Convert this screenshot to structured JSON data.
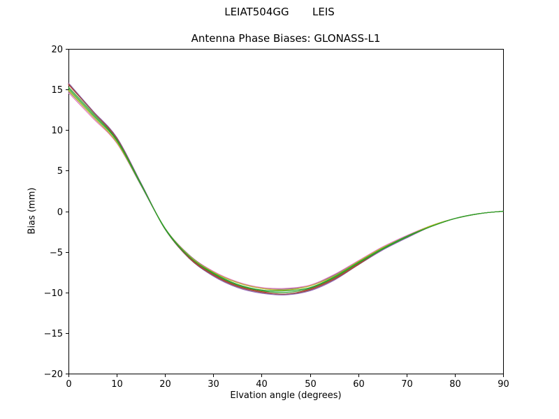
{
  "figure": {
    "suptitle": "LEIAT504GG       LEIS",
    "title": "Antenna Phase Biases: GLONASS-L1",
    "xlabel": "Elvation angle (degrees)",
    "ylabel": "Bias (mm)"
  },
  "chart_data": {
    "type": "line",
    "suptitle": "LEIAT504GG       LEIS",
    "title": "Antenna Phase Biases: GLONASS-L1",
    "xlabel": "Elvation angle (degrees)",
    "ylabel": "Bias (mm)",
    "xlim": [
      0,
      90
    ],
    "ylim": [
      -20,
      20
    ],
    "xticks": [
      0,
      10,
      20,
      30,
      40,
      50,
      60,
      70,
      80,
      90
    ],
    "yticks": [
      -20,
      -15,
      -10,
      -5,
      0,
      5,
      10,
      15,
      20
    ],
    "grid": false,
    "legend": null,
    "x": [
      0,
      5,
      10,
      15,
      20,
      25,
      30,
      35,
      40,
      45,
      50,
      55,
      60,
      65,
      70,
      75,
      80,
      85,
      90
    ],
    "series": [
      {
        "name": "line-1",
        "color": "#9467bd",
        "values": [
          15.8,
          12.4,
          9.1,
          3.5,
          -2.2,
          -5.8,
          -8.0,
          -9.4,
          -10.1,
          -10.3,
          -9.8,
          -8.5,
          -6.6,
          -4.8,
          -3.3,
          -1.9,
          -0.9,
          -0.3,
          0.0
        ]
      },
      {
        "name": "line-2",
        "color": "#d62728",
        "values": [
          15.6,
          12.3,
          8.9,
          3.4,
          -2.2,
          -5.7,
          -7.8,
          -9.2,
          -9.9,
          -10.2,
          -9.6,
          -8.3,
          -6.5,
          -4.7,
          -3.2,
          -1.9,
          -0.9,
          -0.3,
          0.0
        ]
      },
      {
        "name": "line-3",
        "color": "#e377c2",
        "values": [
          14.6,
          11.5,
          8.4,
          3.2,
          -2.1,
          -5.4,
          -7.4,
          -8.7,
          -9.4,
          -9.5,
          -9.1,
          -7.8,
          -6.1,
          -4.4,
          -3.0,
          -1.8,
          -0.9,
          -0.3,
          0.0
        ]
      },
      {
        "name": "line-4",
        "color": "#7f7f7f",
        "values": [
          14.8,
          11.7,
          8.5,
          3.2,
          -2.1,
          -5.4,
          -7.5,
          -8.8,
          -9.5,
          -9.6,
          -9.2,
          -7.9,
          -6.2,
          -4.5,
          -3.1,
          -1.8,
          -0.9,
          -0.3,
          0.0
        ]
      },
      {
        "name": "line-5",
        "color": "#8c564b",
        "values": [
          15.7,
          12.3,
          9.0,
          3.4,
          -2.2,
          -5.8,
          -7.9,
          -9.3,
          -10.0,
          -10.2,
          -9.7,
          -8.4,
          -6.6,
          -4.7,
          -3.2,
          -1.9,
          -0.9,
          -0.3,
          0.0
        ]
      },
      {
        "name": "line-6",
        "color": "#bcbd22",
        "values": [
          14.9,
          11.7,
          8.5,
          3.3,
          -2.1,
          -5.5,
          -7.5,
          -8.8,
          -9.5,
          -9.7,
          -9.2,
          -8.0,
          -6.2,
          -4.5,
          -3.1,
          -1.8,
          -0.9,
          -0.3,
          0.0
        ]
      },
      {
        "name": "line-7",
        "color": "#2ca02c",
        "values": [
          15.3,
          12.1,
          8.8,
          3.4,
          -2.2,
          -5.6,
          -7.7,
          -9.1,
          -9.8,
          -10.0,
          -9.5,
          -8.2,
          -6.4,
          -4.7,
          -3.2,
          -1.9,
          -0.9,
          -0.3,
          0.0
        ]
      },
      {
        "name": "line-8",
        "color": "#2ca02c",
        "values": [
          15.1,
          11.9,
          8.7,
          3.3,
          -2.1,
          -5.6,
          -7.6,
          -9.0,
          -9.7,
          -9.8,
          -9.4,
          -8.1,
          -6.3,
          -4.6,
          -3.1,
          -1.9,
          -0.9,
          -0.3,
          0.0
        ]
      }
    ]
  }
}
